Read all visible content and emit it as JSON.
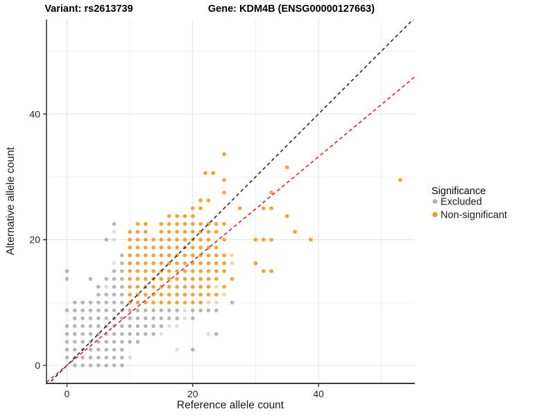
{
  "chart_data": {
    "type": "scatter",
    "title_left": "Variant: rs2613739",
    "title_right": "Gene: KDM4B (ENSG00000127663)",
    "xlabel": "Reference allele count",
    "ylabel": "Alternative allele count",
    "x_ticks": [
      0,
      20,
      40
    ],
    "y_ticks": [
      0,
      20,
      40
    ],
    "x_minor_gridlines": [
      10,
      30,
      50
    ],
    "y_minor_gridlines": [
      10,
      30,
      50
    ],
    "xlim": [
      -3.25,
      55.3
    ],
    "ylim": [
      -2.9,
      55.0
    ],
    "grid": true,
    "legend": {
      "title": "Significance",
      "position": "right",
      "items": [
        {
          "label": "Excluded",
          "color": "#b0b0b0"
        },
        {
          "label": "Non-significant",
          "color": "#f89b1c"
        }
      ]
    },
    "reference_lines": [
      {
        "name": "identity",
        "slope": 1.0,
        "intercept": 0,
        "color": "#262626",
        "style": "dashed"
      },
      {
        "name": "expected-ratio",
        "slope": 0.83,
        "intercept": 0,
        "color": "#e12120",
        "style": "dashed"
      }
    ],
    "series": [
      {
        "name": "Excluded",
        "color": "#b0b0b0",
        "rows": [
          {
            "y": 0,
            "x": [
              1.25,
              2.5,
              3.75,
              5,
              6.25,
              7.5,
              8.75
            ],
            "light": []
          },
          {
            "y": 1.25,
            "x": [
              0,
              1.25,
              2.5,
              3.75,
              5,
              6.25,
              7.5,
              8.75
            ],
            "light": [
              10
            ]
          },
          {
            "y": 2.5,
            "x": [
              0,
              1.25,
              2.5,
              3.75,
              5,
              6.25,
              7.5,
              8.75,
              20
            ],
            "light": [
              17.5
            ]
          },
          {
            "y": 3.75,
            "x": [
              0,
              1.25,
              2.5,
              3.75,
              5,
              6.25,
              7.5,
              8.75,
              10,
              11.25
            ],
            "light": []
          },
          {
            "y": 5,
            "x": [
              0,
              1.25,
              2.5,
              3.75,
              5,
              6.25,
              7.5,
              8.75,
              10,
              11.25,
              12.5,
              13.75,
              23.75
            ],
            "light": [
              15,
              22.5
            ]
          },
          {
            "y": 6.25,
            "x": [
              0,
              1.25,
              2.5,
              3.75,
              5,
              6.25,
              7.5,
              8.75,
              10,
              11.25,
              12.5,
              13.75,
              15
            ],
            "light": [
              16.25,
              17.5
            ]
          },
          {
            "y": 7.5,
            "x": [
              1.25,
              2.5,
              3.75,
              5,
              6.25,
              7.5,
              8.75,
              10,
              11.25,
              12.5,
              13.75,
              15,
              16.25,
              17.5,
              20
            ],
            "light": [
              18.75
            ]
          },
          {
            "y": 8.75,
            "x": [
              0,
              1.25,
              2.5,
              3.75,
              5,
              6.25,
              7.5,
              8.75,
              10,
              11.25,
              12.5,
              13.75,
              15,
              16.25,
              17.5,
              20,
              21.25,
              22.5,
              23.75
            ],
            "light": [
              18.75
            ]
          },
          {
            "y": 10,
            "x": [
              1.25,
              2.5,
              3.75,
              5,
              6.25,
              7.5,
              8.75,
              26.25
            ],
            "light": []
          },
          {
            "y": 11.25,
            "x": [
              5,
              6.25,
              7.5,
              8.75
            ],
            "light": []
          },
          {
            "y": 12.5,
            "x": [
              5,
              7.5,
              8.75
            ],
            "light": [
              6.25
            ]
          },
          {
            "y": 13.75,
            "x": [
              0,
              3.75,
              6.25,
              7.5,
              8.75
            ],
            "light": []
          },
          {
            "y": 15,
            "x": [
              0,
              7.5,
              8.75
            ],
            "light": []
          },
          {
            "y": 16.25,
            "x": [
              8.75
            ],
            "light": [
              7.5
            ]
          },
          {
            "y": 17.5,
            "x": [
              8.75
            ],
            "light": []
          },
          {
            "y": 20,
            "x": [
              6.25
            ],
            "light": [
              7.5
            ]
          },
          {
            "y": 21.25,
            "x": [],
            "light": [
              7.5
            ]
          },
          {
            "y": 22.5,
            "x": [
              7.5
            ],
            "light": []
          }
        ],
        "points": []
      },
      {
        "name": "Non-significant",
        "color": "#f89b1c",
        "rows": [
          {
            "y": 10,
            "x": [
              10,
              11.25,
              12.5,
              13.75,
              15,
              16.25,
              17.5,
              18.75,
              20,
              21.25
            ],
            "light": [
              22.5,
              23.75
            ]
          },
          {
            "y": 11.25,
            "x": [
              10,
              11.25,
              12.5,
              13.75,
              15,
              16.25,
              17.5,
              18.75,
              20,
              21.25,
              22.5,
              23.75
            ],
            "light": [
              25
            ]
          },
          {
            "y": 12.5,
            "x": [
              10,
              11.25,
              12.5,
              13.75,
              15,
              16.25,
              17.5,
              18.75,
              20,
              21.25,
              22.5,
              25
            ],
            "light": [
              23.75
            ]
          },
          {
            "y": 13.75,
            "x": [
              10,
              11.25,
              12.5,
              13.75,
              15,
              16.25,
              17.5,
              18.75,
              20,
              21.25,
              22.5,
              23.75,
              26.25
            ],
            "light": []
          },
          {
            "y": 15,
            "x": [
              10,
              11.25,
              12.5,
              13.75,
              15,
              16.25,
              17.5,
              18.75,
              20,
              21.25,
              22.5,
              23.75,
              25,
              31.25,
              32.5
            ],
            "light": []
          },
          {
            "y": 16.25,
            "x": [
              10,
              11.25,
              12.5,
              13.75,
              15,
              16.25,
              17.5,
              18.75,
              20,
              21.25,
              22.5,
              23.75,
              25,
              30
            ],
            "light": [
              26.25
            ]
          },
          {
            "y": 17.5,
            "x": [
              10,
              11.25,
              12.5,
              13.75,
              15,
              16.25,
              17.5,
              18.75,
              20,
              21.25,
              22.5,
              23.75,
              25
            ],
            "light": [
              26.25
            ]
          },
          {
            "y": 18.75,
            "x": [
              10,
              11.25,
              12.5,
              13.75,
              15,
              16.25,
              17.5,
              18.75,
              20,
              21.25,
              22.5,
              23.75
            ],
            "light": []
          },
          {
            "y": 20,
            "x": [
              10,
              11.25,
              12.5,
              13.75,
              15,
              16.25,
              17.5,
              18.75,
              20,
              21.25,
              22.5,
              25,
              30,
              31.25,
              32.5,
              38.75
            ],
            "light": []
          },
          {
            "y": 21.25,
            "x": [
              10,
              11.25,
              12.5,
              15,
              16.25,
              17.5,
              18.75,
              20,
              21.25,
              22.5,
              23.75,
              36.25
            ],
            "light": []
          },
          {
            "y": 22.5,
            "x": [
              11.25,
              12.5,
              15,
              16.25,
              17.5,
              18.75,
              20,
              21.25,
              22.5,
              23.75,
              25
            ],
            "light": []
          },
          {
            "y": 23.75,
            "x": [
              16.25,
              17.5,
              18.75,
              20,
              35
            ],
            "light": []
          },
          {
            "y": 25,
            "x": [
              20,
              21.25,
              27.5,
              31.25,
              32.5
            ],
            "light": []
          },
          {
            "y": 26.25,
            "x": [
              21.25,
              22.5
            ],
            "light": []
          },
          {
            "y": 27.5,
            "x": [
              25,
              32.5
            ],
            "light": []
          }
        ],
        "points": [
          [
            25,
            29.5
          ],
          [
            22,
            30.6
          ],
          [
            23.25,
            30.6
          ],
          [
            35,
            31.5
          ],
          [
            25,
            33.6
          ],
          [
            53,
            29.5
          ]
        ]
      }
    ]
  }
}
